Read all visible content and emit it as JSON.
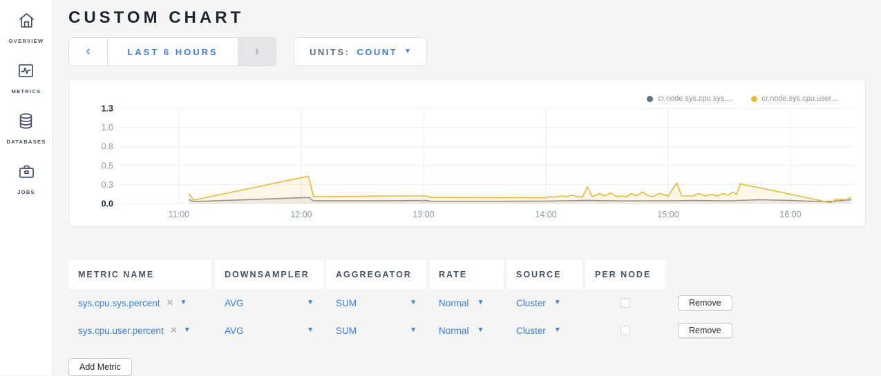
{
  "page_title": "CUSTOM CHART",
  "sidebar": {
    "items": [
      {
        "label": "OVERVIEW",
        "icon": "home"
      },
      {
        "label": "METRICS",
        "icon": "metrics"
      },
      {
        "label": "DATABASES",
        "icon": "database"
      },
      {
        "label": "JOBS",
        "icon": "briefcase"
      }
    ]
  },
  "toolbar": {
    "time_prev_icon": "‹",
    "time_range_label": "LAST 6 HOURS",
    "time_next_icon": "›",
    "units_label": "UNITS:",
    "units_value": "COUNT"
  },
  "chart_data": {
    "type": "line",
    "title": "",
    "xlabel": "",
    "ylabel": "",
    "x_ticks": [
      "11:00",
      "12:00",
      "13:00",
      "14:00",
      "15:00",
      "16:00"
    ],
    "x_tick_hours": [
      11,
      12,
      13,
      14,
      15,
      16
    ],
    "x_range_hours": [
      10.52,
      16.52
    ],
    "ylim": [
      0,
      1.25
    ],
    "y_ticks": [
      {
        "label": "0.0",
        "value": 0,
        "bold": true
      },
      {
        "label": "0.3",
        "value": 0.25,
        "bold": false
      },
      {
        "label": "0.5",
        "value": 0.5,
        "bold": false
      },
      {
        "label": "0.8",
        "value": 0.75,
        "bold": false
      },
      {
        "label": "1.0",
        "value": 1.0,
        "bold": false
      },
      {
        "label": "1.3",
        "value": 1.25,
        "bold": true
      }
    ],
    "grid": true,
    "legend_position": "top-right",
    "series": [
      {
        "name": "cr.node.sys.cpu.sys....",
        "color": "#5d6d90",
        "line_color": "#848da0",
        "fill": "rgba(132,141,160,0.12)",
        "points": [
          [
            11.08,
            0.05
          ],
          [
            11.12,
            0.025
          ],
          [
            12.06,
            0.08
          ],
          [
            12.1,
            0.035
          ],
          [
            12.6,
            0.035
          ],
          [
            13.02,
            0.04
          ],
          [
            13.06,
            0.03
          ],
          [
            13.6,
            0.03
          ],
          [
            14.0,
            0.032
          ],
          [
            14.34,
            0.042
          ],
          [
            14.6,
            0.034
          ],
          [
            15.0,
            0.036
          ],
          [
            15.19,
            0.04
          ],
          [
            15.5,
            0.036
          ],
          [
            15.75,
            0.05
          ],
          [
            16.0,
            0.04
          ],
          [
            16.2,
            0.028
          ],
          [
            16.35,
            0.03
          ],
          [
            16.5,
            0.05
          ]
        ]
      },
      {
        "name": "cr.node.sys.cpu.user...",
        "color": "#eab839",
        "line_color": "#eab839",
        "fill": "rgba(234,184,57,0.12)",
        "points": [
          [
            11.08,
            0.13
          ],
          [
            11.12,
            0.045
          ],
          [
            12.06,
            0.36
          ],
          [
            12.1,
            0.09
          ],
          [
            12.4,
            0.095
          ],
          [
            12.75,
            0.1
          ],
          [
            13.02,
            0.1
          ],
          [
            13.06,
            0.08
          ],
          [
            13.5,
            0.078
          ],
          [
            14.0,
            0.075
          ],
          [
            14.03,
            0.09
          ],
          [
            14.08,
            0.085
          ],
          [
            14.13,
            0.1
          ],
          [
            14.17,
            0.09
          ],
          [
            14.21,
            0.11
          ],
          [
            14.26,
            0.09
          ],
          [
            14.3,
            0.085
          ],
          [
            14.34,
            0.22
          ],
          [
            14.38,
            0.09
          ],
          [
            14.44,
            0.13
          ],
          [
            14.48,
            0.1
          ],
          [
            14.53,
            0.14
          ],
          [
            14.58,
            0.09
          ],
          [
            14.62,
            0.1
          ],
          [
            14.66,
            0.09
          ],
          [
            14.7,
            0.13
          ],
          [
            14.74,
            0.1
          ],
          [
            14.79,
            0.15
          ],
          [
            14.84,
            0.1
          ],
          [
            14.88,
            0.09
          ],
          [
            14.92,
            0.13
          ],
          [
            14.96,
            0.12
          ],
          [
            15.0,
            0.1
          ],
          [
            15.07,
            0.27
          ],
          [
            15.11,
            0.1
          ],
          [
            15.16,
            0.1
          ],
          [
            15.2,
            0.1
          ],
          [
            15.25,
            0.13
          ],
          [
            15.3,
            0.1
          ],
          [
            15.36,
            0.12
          ],
          [
            15.4,
            0.1
          ],
          [
            15.45,
            0.13
          ],
          [
            15.49,
            0.11
          ],
          [
            15.53,
            0.15
          ],
          [
            15.56,
            0.12
          ],
          [
            15.59,
            0.26
          ],
          [
            16.33,
            0.01
          ],
          [
            16.37,
            0.06
          ],
          [
            16.42,
            0.055
          ],
          [
            16.46,
            0.05
          ],
          [
            16.5,
            0.09
          ]
        ]
      }
    ]
  },
  "table": {
    "headers": [
      "METRIC NAME",
      "DOWNSAMPLER",
      "AGGREGATOR",
      "RATE",
      "SOURCE",
      "PER NODE"
    ],
    "rows": [
      {
        "metric": "sys.cpu.sys.percent",
        "downsampler": "AVG",
        "aggregator": "SUM",
        "rate": "Normal",
        "source": "Cluster",
        "per_node_checked": false,
        "remove_label": "Remove"
      },
      {
        "metric": "sys.cpu.user.percent",
        "downsampler": "AVG",
        "aggregator": "SUM",
        "rate": "Normal",
        "source": "Cluster",
        "per_node_checked": false,
        "remove_label": "Remove"
      }
    ],
    "add_metric_label": "Add Metric"
  },
  "colors": {
    "accent_blue": "#3a7ce0",
    "sidebar_icon": "#3f4c66",
    "axis_text": "#8f98a9",
    "axis_text_bold": "#1b2740",
    "gridline": "#ededf0",
    "page_background": "#f5f5f6"
  }
}
